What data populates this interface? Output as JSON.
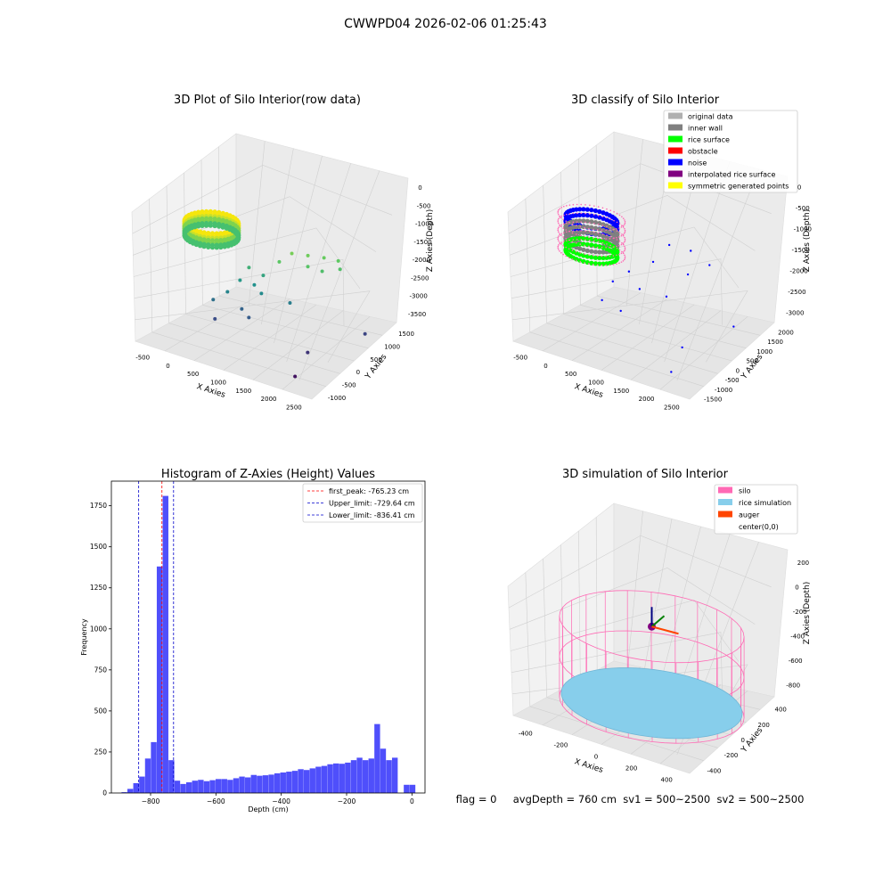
{
  "suptitle": "CWWPD04 2026-02-06 01:25:43",
  "status_line": "flag = 0     avgDepth = 760 cm  sv1 = 500~2500  sv2 = 500~2500",
  "colors": {
    "hist_bar": "#4f4ffb",
    "first_peak": "#ff0000",
    "limits": "#0000cc",
    "pane": "#f2f2f2",
    "grid": "#d0d0d0",
    "silo": "#ff69b4",
    "rice": "#87ceeb",
    "auger": "#ff4500"
  },
  "chart_data": [
    {
      "type": "scatter",
      "subtype": "3d",
      "title": "3D Plot of Silo Interior(row data)",
      "xlabel": "X Axies",
      "ylabel": "Y Axies",
      "zlabel": "Z Axies (Depth)",
      "x_ticks": [
        "-500",
        "0",
        "500",
        "1000",
        "1500",
        "2000",
        "2500"
      ],
      "y_ticks": [
        "-1000",
        "-500",
        "0",
        "500",
        "1000",
        "1500"
      ],
      "z_ticks": [
        "0",
        "-500",
        "-1000",
        "-1500",
        "-2000",
        "-2500",
        "-3000",
        "-3500"
      ],
      "xlim": [
        -650,
        2650
      ],
      "ylim": [
        -1150,
        1650
      ],
      "zlim": [
        -3700,
        100
      ],
      "colormap": "viridis (by height)",
      "points": [
        {
          "x": 1300,
          "y": 300,
          "z": -700
        },
        {
          "x": 1500,
          "y": 450,
          "z": -750
        },
        {
          "x": 1700,
          "y": 600,
          "z": -800
        },
        {
          "x": 1900,
          "y": 700,
          "z": -850
        },
        {
          "x": 1200,
          "y": 100,
          "z": -900
        },
        {
          "x": 1600,
          "y": 300,
          "z": -950
        },
        {
          "x": 2000,
          "y": 600,
          "z": -1000
        },
        {
          "x": 1800,
          "y": 400,
          "z": -1050
        },
        {
          "x": 700,
          "y": 0,
          "z": -1300
        },
        {
          "x": 900,
          "y": 100,
          "z": -1500
        },
        {
          "x": 600,
          "y": -100,
          "z": -1700
        },
        {
          "x": 800,
          "y": 0,
          "z": -1800
        },
        {
          "x": 1000,
          "y": -100,
          "z": -1900
        },
        {
          "x": 500,
          "y": -300,
          "z": -2000
        },
        {
          "x": 1400,
          "y": 100,
          "z": -2100
        },
        {
          "x": 300,
          "y": -400,
          "z": -2300
        },
        {
          "x": 700,
          "y": -200,
          "z": -2500
        },
        {
          "x": 900,
          "y": -300,
          "z": -2600
        },
        {
          "x": 400,
          "y": -500,
          "z": -2800
        },
        {
          "x": 2400,
          "y": 700,
          "z": -2900
        },
        {
          "x": 2000,
          "y": -300,
          "z": -3100
        },
        {
          "x": 2100,
          "y": -800,
          "z": -3500
        }
      ]
    },
    {
      "type": "scatter",
      "subtype": "3d",
      "title": "3D classify of Silo Interior",
      "xlabel": "X Axies",
      "ylabel": "Y Axies",
      "zlabel": "Z Axies (Depth)",
      "x_ticks": [
        "-500",
        "0",
        "500",
        "1000",
        "1500",
        "2000",
        "2500"
      ],
      "y_ticks": [
        "-1500",
        "-1000",
        "-500",
        "0",
        "500",
        "1000",
        "1500",
        "2000"
      ],
      "z_ticks": [
        "0",
        "-500",
        "-1000",
        "-1500",
        "-2000",
        "-2500",
        "-3000"
      ],
      "xlim": [
        -650,
        2650
      ],
      "ylim": [
        -1600,
        2100
      ],
      "zlim": [
        -3300,
        100
      ],
      "legend": [
        {
          "label": "original data",
          "color": "#b0b0b0"
        },
        {
          "label": "inner wall",
          "color": "#808080"
        },
        {
          "label": "rice surface",
          "color": "#00ff00"
        },
        {
          "label": "obstacle",
          "color": "#ff0000"
        },
        {
          "label": "noise",
          "color": "#0000ff"
        },
        {
          "label": "interpolated rice surface",
          "color": "#800080"
        },
        {
          "label": "symmetric generated points",
          "color": "#ffff00"
        }
      ],
      "legend_position": "top-right",
      "noise_points": [
        {
          "x": 1200,
          "y": 500,
          "z": -500
        },
        {
          "x": 1500,
          "y": 700,
          "z": -600
        },
        {
          "x": 1800,
          "y": 800,
          "z": -900
        },
        {
          "x": 1000,
          "y": 300,
          "z": -1000
        },
        {
          "x": 1600,
          "y": 400,
          "z": -1100
        },
        {
          "x": 700,
          "y": 0,
          "z": -1300
        },
        {
          "x": 500,
          "y": -200,
          "z": -1600
        },
        {
          "x": 900,
          "y": 0,
          "z": -1700
        },
        {
          "x": 1300,
          "y": 200,
          "z": -1800
        },
        {
          "x": 400,
          "y": -400,
          "z": -2100
        },
        {
          "x": 700,
          "y": -300,
          "z": -2300
        },
        {
          "x": 2200,
          "y": 900,
          "z": -2500
        },
        {
          "x": 1900,
          "y": -400,
          "z": -2700
        },
        {
          "x": 2000,
          "y": -1000,
          "z": -3100
        }
      ]
    },
    {
      "type": "bar",
      "subtype": "histogram",
      "title": "Histogram of Z-Axies (Height) Values",
      "xlabel": "Depth (cm)",
      "ylabel": "Frequency",
      "xlim": [
        -920,
        40
      ],
      "ylim": [
        0,
        1900
      ],
      "x_ticks": [
        -800,
        -600,
        -400,
        -200,
        0
      ],
      "y_ticks": [
        0,
        250,
        500,
        750,
        1000,
        1250,
        1500,
        1750
      ],
      "grid": false,
      "bin_width": 18,
      "bin_starts": [
        -889,
        -871,
        -853,
        -835,
        -817,
        -799,
        -781,
        -763,
        -745,
        -727,
        -709,
        -691,
        -673,
        -655,
        -637,
        -619,
        -601,
        -583,
        -565,
        -547,
        -529,
        -511,
        -493,
        -475,
        -457,
        -439,
        -421,
        -403,
        -385,
        -367,
        -349,
        -331,
        -313,
        -295,
        -277,
        -259,
        -241,
        -223,
        -205,
        -187,
        -169,
        -151,
        -133,
        -115,
        -97,
        -79,
        -61,
        -43,
        -25,
        -7
      ],
      "values": [
        5,
        25,
        60,
        100,
        210,
        310,
        1380,
        1810,
        200,
        75,
        55,
        65,
        75,
        80,
        72,
        78,
        85,
        85,
        80,
        90,
        100,
        95,
        110,
        105,
        108,
        112,
        120,
        125,
        130,
        135,
        145,
        140,
        150,
        160,
        165,
        175,
        180,
        178,
        185,
        200,
        215,
        200,
        210,
        420,
        270,
        200,
        215,
        0,
        50,
        50
      ],
      "vlines": [
        {
          "label": "first_peak: -765.23 cm",
          "x": -765.23,
          "style": "dashed",
          "color": "#ff0000"
        },
        {
          "label": "Upper_limit: -729.64 cm",
          "x": -729.64,
          "style": "dashed",
          "color": "#0000cc"
        },
        {
          "label": "Lower_limit: -836.41 cm",
          "x": -836.41,
          "style": "dashed",
          "color": "#0000cc"
        }
      ],
      "legend_position": "top-right"
    },
    {
      "type": "scatter",
      "subtype": "3d",
      "title": "3D simulation of Silo Interior",
      "xlabel": "X Axies",
      "ylabel": "Y Axies",
      "zlabel": "Z Axies (Depth)",
      "x_ticks": [
        "-400",
        "-200",
        "0",
        "200",
        "400"
      ],
      "y_ticks": [
        "-400",
        "-200",
        "0",
        "200",
        "400"
      ],
      "z_ticks": [
        "200",
        "0",
        "-200",
        "-400",
        "-600",
        "-800"
      ],
      "xlim": [
        -550,
        550
      ],
      "ylim": [
        -550,
        550
      ],
      "zlim": [
        -900,
        280
      ],
      "legend": [
        {
          "label": "silo",
          "color": "#ff69b4"
        },
        {
          "label": "rice simulation",
          "color": "#87ceeb"
        },
        {
          "label": "auger",
          "color": "#ff4500"
        },
        {
          "label": "center(0,0)",
          "color": ""
        }
      ],
      "legend_position": "top-right",
      "silo_radius": 500,
      "silo_top": 0,
      "silo_bottom": -800,
      "rice_level": -760
    }
  ]
}
